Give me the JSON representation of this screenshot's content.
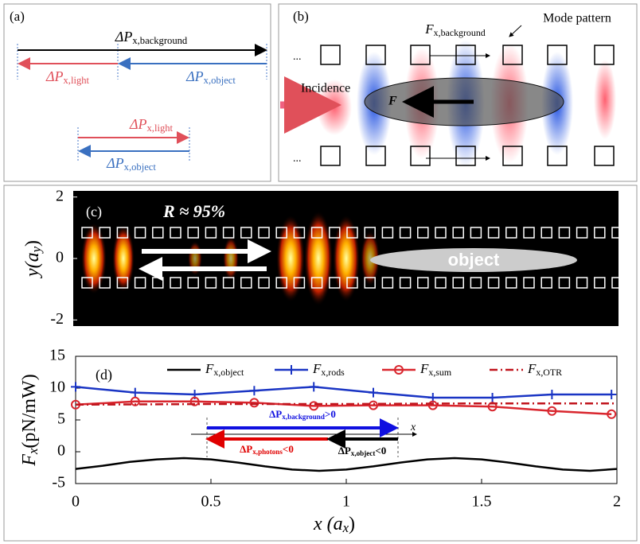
{
  "panel_a": {
    "label": "(a)",
    "background": {
      "main": "ΔP",
      "sub": "x,background"
    },
    "light_top": {
      "main": "ΔP",
      "sub": "x,light"
    },
    "object_top": {
      "main": "ΔP",
      "sub": "x,object"
    },
    "light_bottom": {
      "main": "ΔP",
      "sub": "x,light"
    },
    "object_bottom": {
      "main": "ΔP",
      "sub": "x,object"
    }
  },
  "panel_b": {
    "label": "(b)",
    "incidence": "Incidence",
    "force": "F",
    "mode_pattern": "Mode pattern",
    "force_background": {
      "main": "F",
      "sub": "x,background"
    },
    "ellipsis_top": "...",
    "ellipsis_bottom": "..."
  },
  "panel_c": {
    "label": "(c)",
    "reflectance": "R ≈ 95%",
    "object": "object",
    "y_label": {
      "main": "y(a",
      "sub": "y",
      "suffix": ")"
    },
    "ylim": [
      -2.2,
      2.2
    ],
    "yticks": [
      2,
      0,
      -2
    ]
  },
  "chart_data": {
    "type": "line",
    "label": "(d)",
    "x_label": {
      "main": "x (a",
      "sub": "x",
      "suffix": ")"
    },
    "y_label": {
      "main": "F",
      "sub": "x",
      "suffix": "(pN/mW)"
    },
    "xlim": [
      0,
      2
    ],
    "ylim": [
      -5,
      15
    ],
    "xticks": [
      0,
      0.5,
      1,
      1.5,
      2
    ],
    "yticks": [
      15,
      10,
      5,
      0,
      -5
    ],
    "series": [
      {
        "name": {
          "main": "F",
          "sub": "x,object"
        },
        "color": "#000000",
        "style": "solid",
        "marker": "none",
        "x": [
          0,
          0.1,
          0.2,
          0.3,
          0.4,
          0.5,
          0.6,
          0.7,
          0.8,
          0.9,
          1.0,
          1.1,
          1.2,
          1.3,
          1.4,
          1.5,
          1.6,
          1.7,
          1.8,
          1.9,
          2.0
        ],
        "values": [
          -2.7,
          -2.2,
          -1.6,
          -1.2,
          -1.0,
          -1.2,
          -1.7,
          -2.3,
          -2.8,
          -3.0,
          -2.8,
          -2.3,
          -1.7,
          -1.2,
          -1.0,
          -1.2,
          -1.7,
          -2.3,
          -2.8,
          -3.0,
          -2.7
        ]
      },
      {
        "name": {
          "main": "F",
          "sub": "x,rods"
        },
        "color": "#1a35c4",
        "style": "solid",
        "marker": "plus",
        "x": [
          0,
          0.22,
          0.44,
          0.66,
          0.88,
          1.1,
          1.32,
          1.54,
          1.76,
          1.98
        ],
        "values": [
          10.2,
          9.3,
          9.0,
          9.6,
          10.2,
          9.3,
          8.5,
          8.5,
          9.0,
          9.0
        ]
      },
      {
        "name": {
          "main": "F",
          "sub": "x,sum"
        },
        "color": "#d9262e",
        "style": "solid",
        "marker": "circle",
        "x": [
          0,
          0.22,
          0.44,
          0.66,
          0.88,
          1.1,
          1.32,
          1.54,
          1.76,
          1.98
        ],
        "values": [
          7.4,
          7.9,
          7.9,
          7.7,
          7.2,
          7.3,
          7.3,
          7.1,
          6.4,
          5.9
        ]
      },
      {
        "name": {
          "main": "F",
          "sub": "x,OTR"
        },
        "color": "#c0141c",
        "style": "dashdot",
        "marker": "none",
        "x": [
          0,
          0.5,
          1.0,
          1.5,
          2.0
        ],
        "values": [
          7.4,
          7.5,
          7.5,
          7.6,
          7.6
        ]
      }
    ],
    "annotations": {
      "background": {
        "main": "ΔP",
        "sub": "x,background",
        "suffix": ">0"
      },
      "photons": {
        "main": "ΔP",
        "sub": "x,photons",
        "suffix": "<0"
      },
      "object": {
        "main": "ΔP",
        "sub": "x,object",
        "suffix": "<0"
      },
      "axis": "x"
    }
  }
}
